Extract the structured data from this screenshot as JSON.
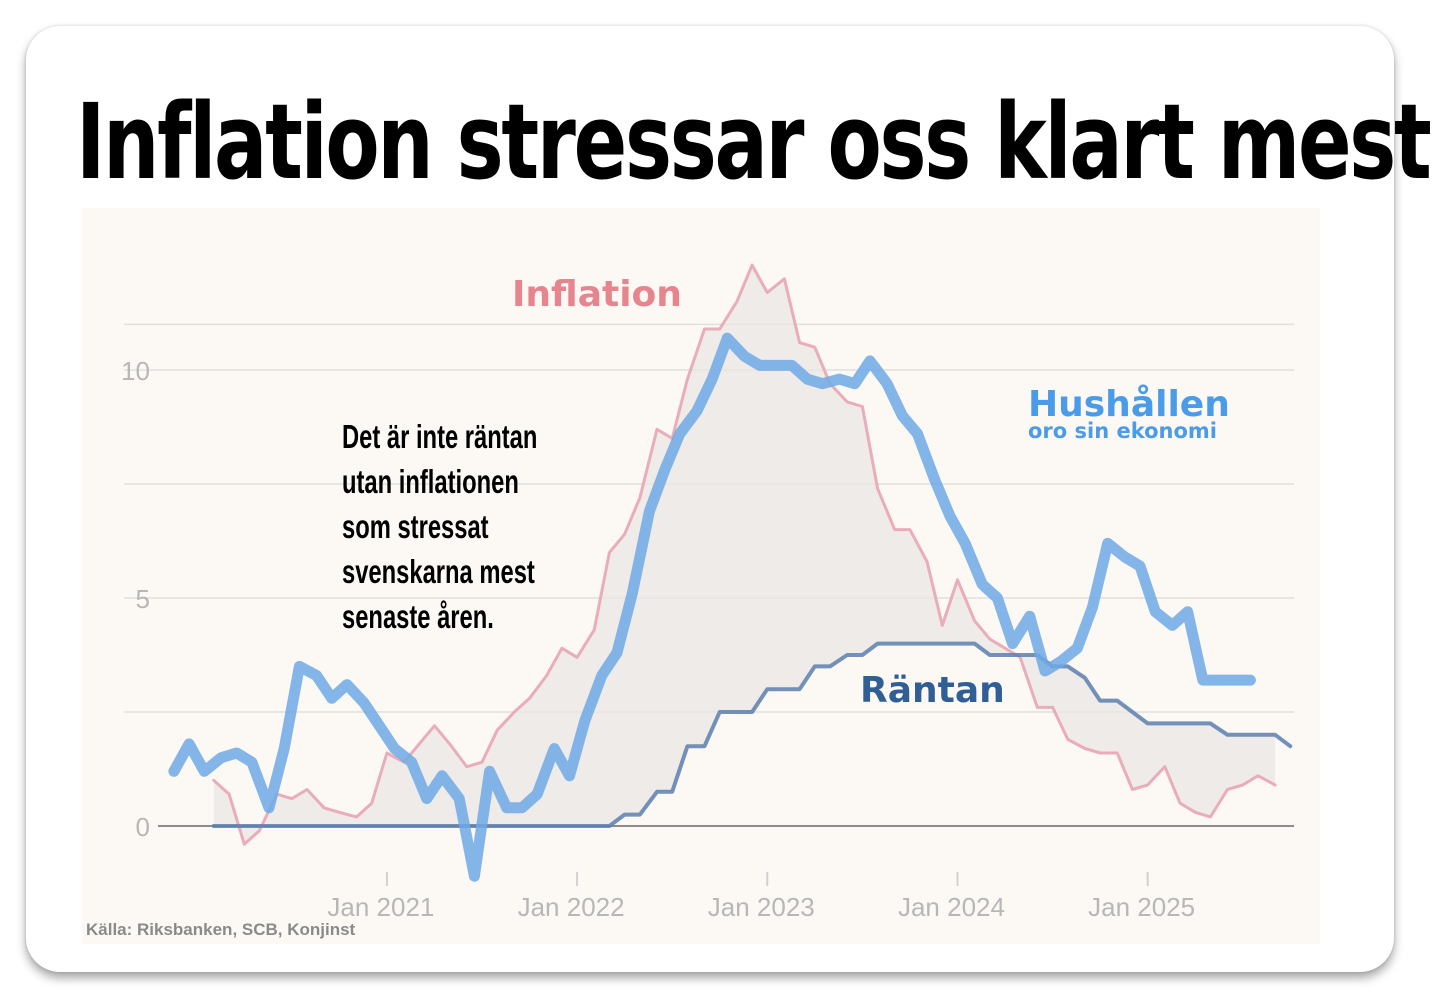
{
  "headline": "Inflation stressar oss klart mest",
  "annotation": {
    "lines": [
      "Det är inte räntan",
      "utan inflationen",
      "som stressat",
      "svenskarna mest",
      "senaste åren."
    ]
  },
  "source": "Källa: Riksbanken, SCB, Konjinst",
  "colors": {
    "inflation": "#e8a5b3",
    "inflation_label": "#e7858f",
    "hushallen": "#6fa9e6",
    "hushallen_label": "#4a9be8",
    "rantan": "#5b7fae",
    "rantan_label": "#2f5f94",
    "band_fill": "#e9e5e3",
    "grid": "#e2e0dc",
    "background": "#fcf9f5"
  },
  "chart_data": {
    "type": "line",
    "title": "",
    "xlabel": "",
    "ylabel": "",
    "ylim": [
      -1.2,
      12.5
    ],
    "y_ticks": [
      0,
      5,
      10
    ],
    "y_tick_labels": [
      "0",
      "5",
      "10"
    ],
    "x_ticks": [
      2021.0,
      2022.0,
      2023.0,
      2024.0,
      2025.0
    ],
    "x_tick_labels": [
      "Jan 2021",
      "Jan 2022",
      "Jan 2023",
      "Jan 2024",
      "Jan 2025"
    ],
    "xlim": [
      2019.87,
      2025.78
    ],
    "grid": "horizontal",
    "series_labels": [
      {
        "key": "inflation",
        "text": "Inflation",
        "subtext": ""
      },
      {
        "key": "hushallen",
        "text": "Hushållen",
        "subtext": "oro sin ekonomi"
      },
      {
        "key": "rantan",
        "text": "Räntan",
        "subtext": ""
      }
    ],
    "series": [
      {
        "name": "Inflation",
        "key": "inflation",
        "x": [
          2020.09,
          2020.17,
          2020.25,
          2020.33,
          2020.42,
          2020.5,
          2020.58,
          2020.67,
          2020.75,
          2020.84,
          2020.92,
          2021.0,
          2021.09,
          2021.17,
          2021.25,
          2021.33,
          2021.42,
          2021.5,
          2021.58,
          2021.67,
          2021.75,
          2021.84,
          2021.92,
          2022.0,
          2022.09,
          2022.17,
          2022.25,
          2022.33,
          2022.42,
          2022.5,
          2022.58,
          2022.67,
          2022.75,
          2022.84,
          2022.92,
          2023.0,
          2023.09,
          2023.17,
          2023.25,
          2023.33,
          2023.42,
          2023.5,
          2023.58,
          2023.67,
          2023.75,
          2023.84,
          2023.92,
          2024.0,
          2024.09,
          2024.17,
          2024.25,
          2024.33,
          2024.42,
          2024.5,
          2024.58,
          2024.67,
          2024.75,
          2024.84,
          2024.92,
          2025.0,
          2025.09,
          2025.17,
          2025.25,
          2025.33,
          2025.42,
          2025.5,
          2025.58,
          2025.67
        ],
        "values": [
          1.0,
          0.7,
          -0.4,
          -0.1,
          0.7,
          0.6,
          0.8,
          0.4,
          0.3,
          0.2,
          0.5,
          1.6,
          1.4,
          1.8,
          2.2,
          1.8,
          1.3,
          1.4,
          2.1,
          2.5,
          2.8,
          3.3,
          3.9,
          3.7,
          4.3,
          6.0,
          6.4,
          7.2,
          8.7,
          8.5,
          9.8,
          10.9,
          10.9,
          11.5,
          12.3,
          11.7,
          12.0,
          10.6,
          10.5,
          9.7,
          9.3,
          9.2,
          7.4,
          6.5,
          6.5,
          5.8,
          4.4,
          5.4,
          4.5,
          4.1,
          3.9,
          3.7,
          2.6,
          2.6,
          1.9,
          1.7,
          1.6,
          1.6,
          0.8,
          0.9,
          1.3,
          0.5,
          0.3,
          0.2,
          0.8,
          0.9,
          1.1,
          0.9
        ]
      },
      {
        "name": "Hushållen",
        "key": "hushallen",
        "x": [
          2019.88,
          2019.96,
          2020.04,
          2020.13,
          2020.21,
          2020.29,
          2020.38,
          2020.46,
          2020.54,
          2020.63,
          2020.71,
          2020.79,
          2020.88,
          2020.96,
          2021.04,
          2021.13,
          2021.21,
          2021.29,
          2021.38,
          2021.46,
          2021.54,
          2021.63,
          2021.71,
          2021.79,
          2021.88,
          2021.96,
          2022.04,
          2022.13,
          2022.21,
          2022.29,
          2022.38,
          2022.46,
          2022.54,
          2022.63,
          2022.71,
          2022.79,
          2022.88,
          2022.96,
          2023.04,
          2023.13,
          2023.21,
          2023.29,
          2023.38,
          2023.46,
          2023.54,
          2023.63,
          2023.71,
          2023.79,
          2023.88,
          2023.96,
          2024.04,
          2024.13,
          2024.21,
          2024.29,
          2024.38,
          2024.46,
          2024.54,
          2024.63,
          2024.71,
          2024.79,
          2024.88,
          2024.96,
          2025.04,
          2025.13,
          2025.21,
          2025.29,
          2025.38,
          2025.46,
          2025.54
        ],
        "values": [
          1.2,
          1.8,
          1.2,
          1.5,
          1.6,
          1.4,
          0.4,
          1.7,
          3.5,
          3.3,
          2.8,
          3.1,
          2.7,
          2.2,
          1.7,
          1.4,
          0.6,
          1.1,
          0.6,
          -1.1,
          1.2,
          0.4,
          0.4,
          0.7,
          1.7,
          1.1,
          2.3,
          3.3,
          3.8,
          5.1,
          6.9,
          7.8,
          8.6,
          9.1,
          9.8,
          10.7,
          10.3,
          10.1,
          10.1,
          10.1,
          9.8,
          9.7,
          9.8,
          9.7,
          10.2,
          9.7,
          9.0,
          8.6,
          7.6,
          6.8,
          6.2,
          5.3,
          5.0,
          4.0,
          4.6,
          3.4,
          3.6,
          3.9,
          4.8,
          6.2,
          5.9,
          5.7,
          4.7,
          4.4,
          4.7,
          3.2,
          3.2,
          3.2,
          3.2
        ]
      },
      {
        "name": "Räntan",
        "key": "rantan",
        "x": [
          2020.09,
          2021.0,
          2021.75,
          2022.17,
          2022.25,
          2022.33,
          2022.42,
          2022.5,
          2022.58,
          2022.67,
          2022.75,
          2022.84,
          2022.92,
          2023.0,
          2023.08,
          2023.17,
          2023.25,
          2023.33,
          2023.42,
          2023.5,
          2023.58,
          2023.67,
          2023.75,
          2023.84,
          2023.92,
          2024.0,
          2024.09,
          2024.17,
          2024.25,
          2024.33,
          2024.42,
          2024.5,
          2024.58,
          2024.67,
          2024.75,
          2024.84,
          2024.92,
          2025.0,
          2025.09,
          2025.17,
          2025.25,
          2025.33,
          2025.42,
          2025.5,
          2025.58,
          2025.67,
          2025.75
        ],
        "values": [
          0.0,
          0.0,
          0.0,
          0.0,
          0.25,
          0.25,
          0.75,
          0.75,
          1.75,
          1.75,
          2.5,
          2.5,
          2.5,
          3.0,
          3.0,
          3.0,
          3.5,
          3.5,
          3.75,
          3.75,
          4.0,
          4.0,
          4.0,
          4.0,
          4.0,
          4.0,
          4.0,
          3.75,
          3.75,
          3.75,
          3.75,
          3.5,
          3.5,
          3.25,
          2.75,
          2.75,
          2.5,
          2.25,
          2.25,
          2.25,
          2.25,
          2.25,
          2.0,
          2.0,
          2.0,
          2.0,
          1.75
        ]
      }
    ]
  }
}
